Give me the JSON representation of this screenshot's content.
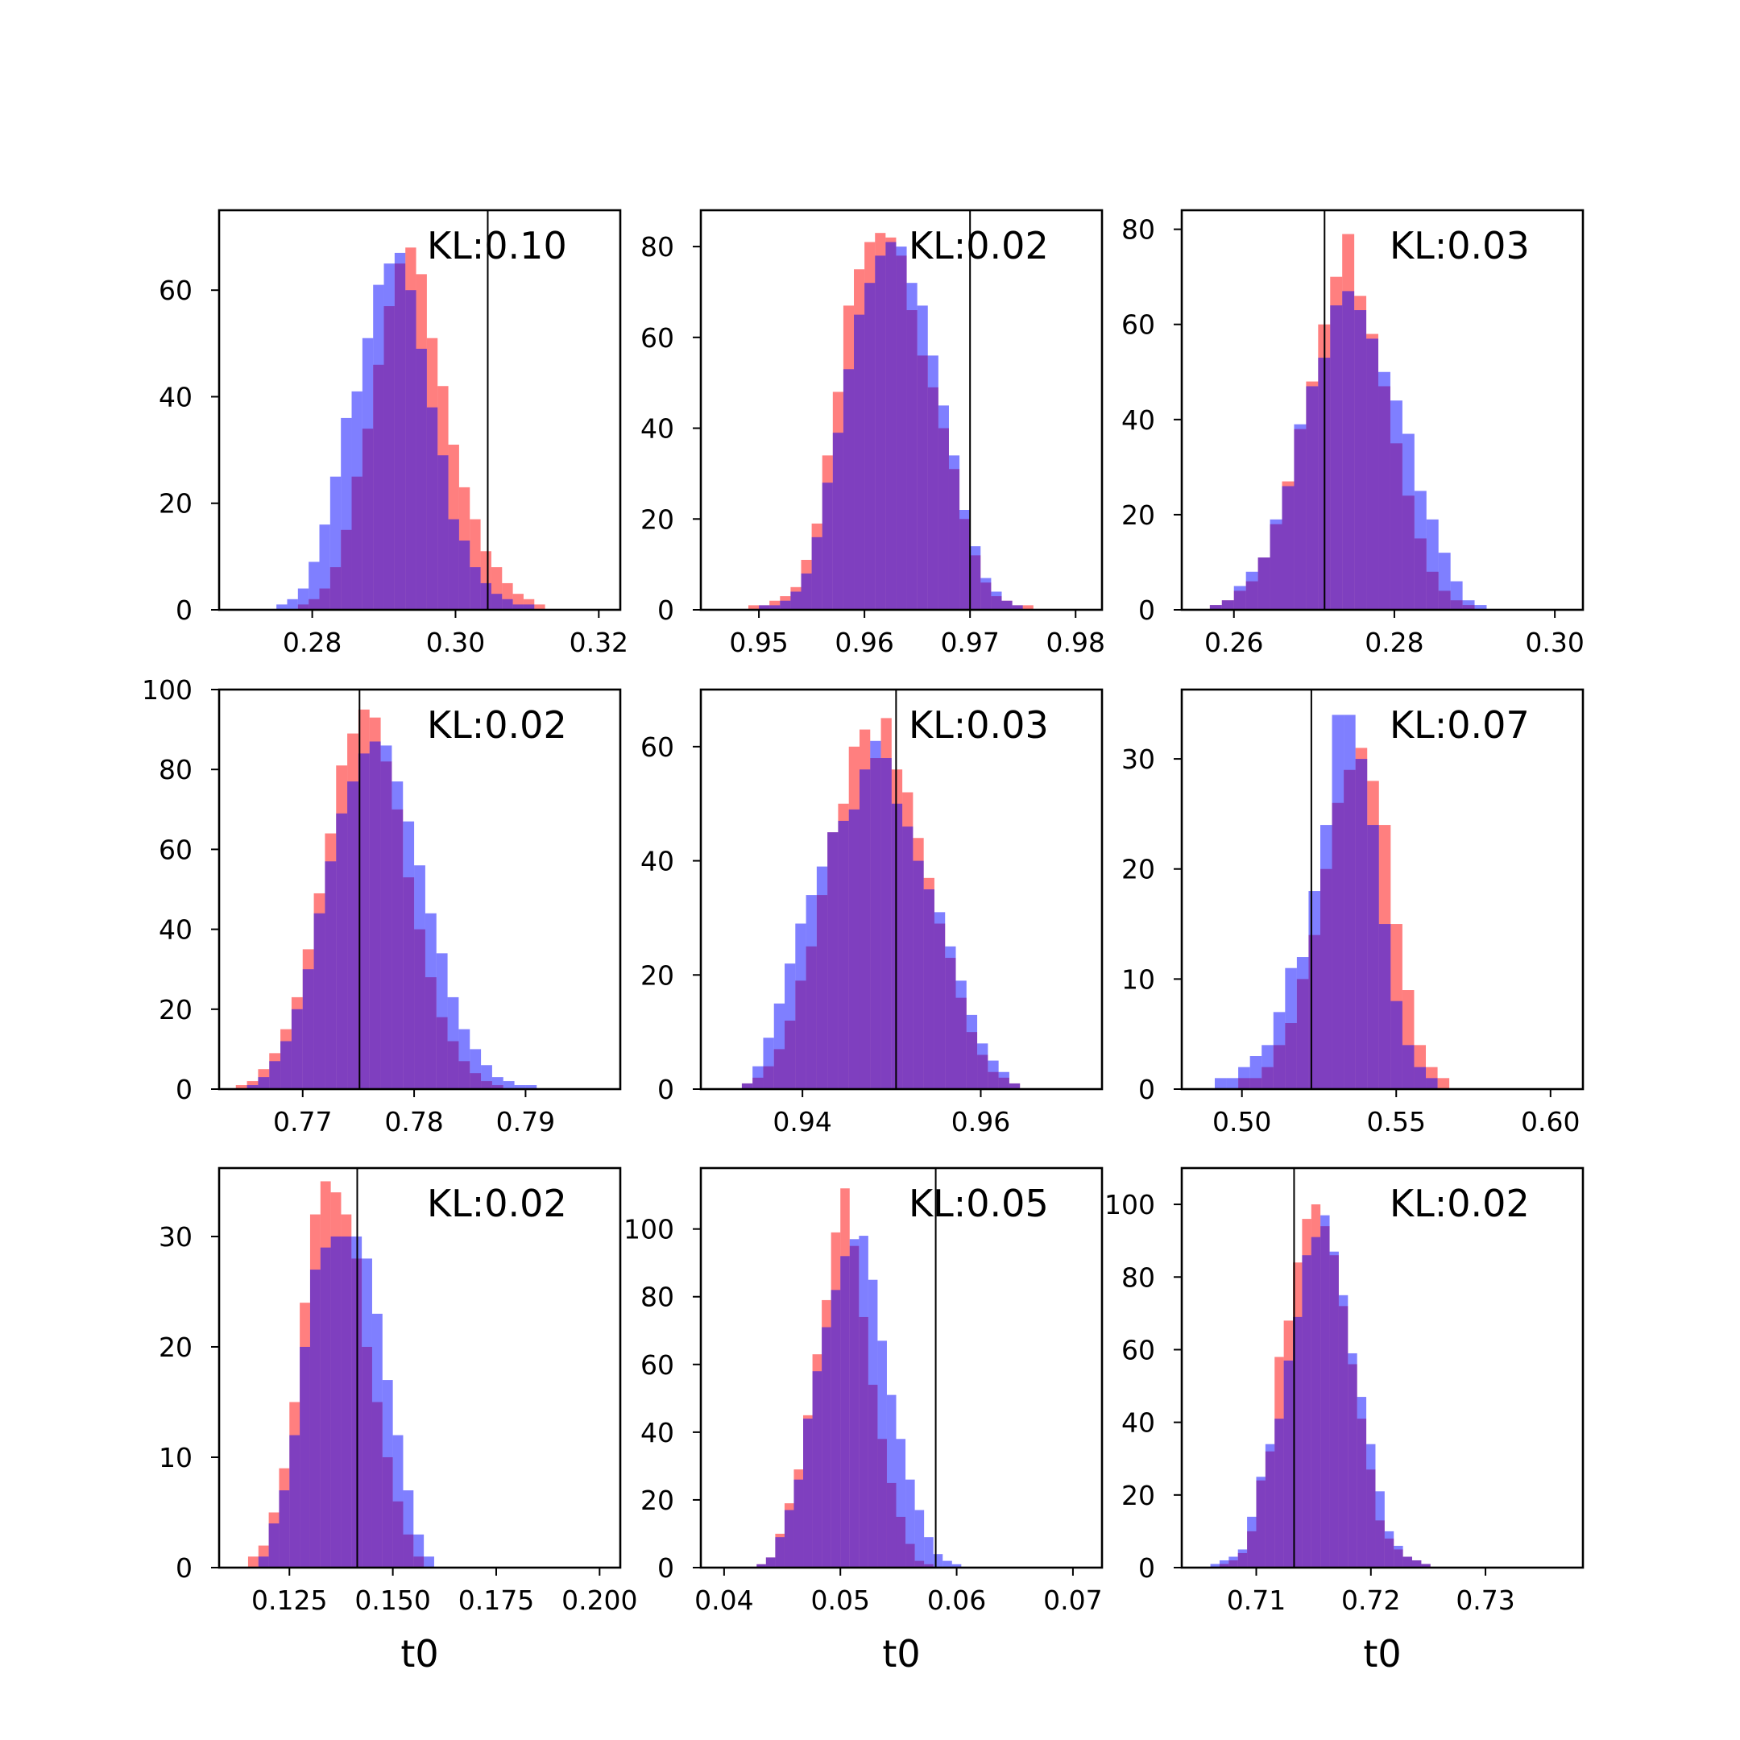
{
  "colors": {
    "red_series": "#ff0000",
    "blue_series": "#0000ff",
    "overlap": "#7f00ff",
    "reference_line": "#000000",
    "frame": "#000000"
  },
  "chart_data": [
    {
      "type": "histogram",
      "kl_label": "KL:0.10",
      "xlabel": "",
      "xlim": [
        0.267,
        0.323
      ],
      "ylim": [
        0,
        75
      ],
      "xticks": [
        0.28,
        0.3,
        0.32
      ],
      "xtick_labels": [
        "0.28",
        "0.30",
        "0.32"
      ],
      "yticks": [
        0,
        20,
        40,
        60
      ],
      "ytick_labels": [
        "0",
        "20",
        "40",
        "60"
      ],
      "reference_x": 0.3045,
      "bin_start": 0.2735,
      "bin_width": 0.0015,
      "series": [
        {
          "color": "red",
          "counts": [
            0,
            0,
            0,
            1,
            2,
            4,
            8,
            15,
            25,
            34,
            46,
            57,
            65,
            68,
            63,
            51,
            42,
            31,
            23,
            17,
            11,
            8,
            5,
            3,
            2,
            1,
            0
          ]
        },
        {
          "color": "blue",
          "counts": [
            0,
            1,
            2,
            4,
            9,
            16,
            25,
            36,
            41,
            51,
            61,
            65,
            67,
            60,
            49,
            38,
            29,
            17,
            13,
            8,
            5,
            3,
            2,
            1,
            1,
            0,
            0
          ]
        }
      ]
    },
    {
      "type": "histogram",
      "kl_label": "KL:0.02",
      "xlabel": "",
      "xlim": [
        0.9445,
        0.9825
      ],
      "ylim": [
        0,
        88
      ],
      "xticks": [
        0.95,
        0.96,
        0.97,
        0.98
      ],
      "xtick_labels": [
        "0.95",
        "0.96",
        "0.97",
        "0.98"
      ],
      "yticks": [
        0,
        20,
        40,
        60,
        80
      ],
      "ytick_labels": [
        "0",
        "20",
        "40",
        "60",
        "80"
      ],
      "reference_x": 0.97,
      "bin_start": 0.948,
      "bin_width": 0.001,
      "series": [
        {
          "color": "red",
          "counts": [
            0,
            1,
            1,
            2,
            3,
            5,
            11,
            19,
            34,
            48,
            67,
            75,
            81,
            83,
            82,
            78,
            66,
            56,
            49,
            40,
            31,
            20,
            12,
            6,
            3,
            2,
            1,
            1
          ]
        },
        {
          "color": "blue",
          "counts": [
            0,
            0,
            1,
            1,
            2,
            4,
            8,
            16,
            28,
            39,
            53,
            65,
            72,
            78,
            81,
            80,
            72,
            67,
            56,
            45,
            34,
            22,
            14,
            7,
            4,
            2,
            1,
            0
          ]
        }
      ]
    },
    {
      "type": "histogram",
      "kl_label": "KL:0.03",
      "xlabel": "",
      "xlim": [
        0.2535,
        0.3035
      ],
      "ylim": [
        0,
        84
      ],
      "xticks": [
        0.26,
        0.28,
        0.3
      ],
      "xtick_labels": [
        "0.26",
        "0.28",
        "0.30"
      ],
      "yticks": [
        0,
        20,
        40,
        60,
        80
      ],
      "ytick_labels": [
        "0",
        "20",
        "40",
        "60",
        "80"
      ],
      "reference_x": 0.2713,
      "bin_start": 0.2555,
      "bin_width": 0.0015,
      "series": [
        {
          "color": "red",
          "counts": [
            0,
            1,
            2,
            4,
            6,
            11,
            18,
            27,
            38,
            48,
            60,
            70,
            79,
            66,
            58,
            47,
            35,
            24,
            15,
            8,
            4,
            2,
            1,
            0,
            0
          ]
        },
        {
          "color": "blue",
          "counts": [
            0,
            1,
            2,
            5,
            8,
            11,
            19,
            26,
            39,
            47,
            53,
            64,
            67,
            63,
            57,
            50,
            44,
            37,
            25,
            19,
            12,
            6,
            2,
            1,
            0
          ]
        }
      ]
    },
    {
      "type": "histogram",
      "kl_label": "KL:0.02",
      "xlabel": "",
      "xlim": [
        0.7625,
        0.7985
      ],
      "ylim": [
        0,
        100
      ],
      "xticks": [
        0.77,
        0.78,
        0.79
      ],
      "xtick_labels": [
        "0.77",
        "0.78",
        "0.79"
      ],
      "yticks": [
        0,
        20,
        40,
        60,
        80,
        100
      ],
      "ytick_labels": [
        "0",
        "20",
        "40",
        "60",
        "80",
        "100"
      ],
      "reference_x": 0.7751,
      "bin_start": 0.764,
      "bin_width": 0.001,
      "series": [
        {
          "color": "red",
          "counts": [
            1,
            2,
            5,
            9,
            15,
            23,
            35,
            49,
            64,
            81,
            89,
            95,
            93,
            82,
            70,
            53,
            40,
            28,
            18,
            12,
            7,
            4,
            2,
            1,
            0,
            0,
            0,
            0,
            0,
            0
          ]
        },
        {
          "color": "blue",
          "counts": [
            0,
            1,
            3,
            7,
            12,
            20,
            30,
            44,
            57,
            69,
            77,
            84,
            87,
            86,
            77,
            67,
            56,
            44,
            34,
            23,
            15,
            10,
            6,
            3,
            2,
            1,
            1,
            0,
            0,
            0
          ]
        }
      ]
    },
    {
      "type": "histogram",
      "kl_label": "KL:0.03",
      "xlabel": "",
      "xlim": [
        0.9286,
        0.9736
      ],
      "ylim": [
        0,
        70
      ],
      "xticks": [
        0.94,
        0.96
      ],
      "xtick_labels": [
        "0.94",
        "0.96"
      ],
      "yticks": [
        0,
        20,
        40,
        60
      ],
      "ytick_labels": [
        "0",
        "20",
        "40",
        "60"
      ],
      "reference_x": 0.9505,
      "bin_start": 0.932,
      "bin_width": 0.0012,
      "series": [
        {
          "color": "red",
          "counts": [
            0,
            1,
            2,
            4,
            7,
            12,
            19,
            25,
            34,
            45,
            50,
            60,
            63,
            58,
            65,
            56,
            52,
            44,
            37,
            29,
            23,
            16,
            10,
            6,
            3,
            2,
            1,
            0,
            0,
            0,
            0,
            0,
            0
          ]
        },
        {
          "color": "blue",
          "counts": [
            0,
            1,
            4,
            9,
            15,
            22,
            29,
            34,
            39,
            45,
            47,
            49,
            56,
            61,
            58,
            50,
            46,
            40,
            35,
            31,
            25,
            19,
            13,
            8,
            5,
            3,
            1,
            0,
            0,
            0,
            0,
            0,
            0
          ]
        }
      ]
    },
    {
      "type": "histogram",
      "kl_label": "KL:0.07",
      "xlabel": "",
      "xlim": [
        0.4805,
        0.6105
      ],
      "ylim": [
        0,
        36.3
      ],
      "xticks": [
        0.5,
        0.55,
        0.6
      ],
      "xtick_labels": [
        "0.50",
        "0.55",
        "0.60"
      ],
      "yticks": [
        0,
        10,
        20,
        30
      ],
      "ytick_labels": [
        "0",
        "10",
        "20",
        "30"
      ],
      "reference_x": 0.5225,
      "bin_start": 0.4912,
      "bin_width": 0.0038,
      "series": [
        {
          "color": "red",
          "counts": [
            0,
            0,
            1,
            1,
            2,
            4,
            6,
            10,
            14,
            20,
            26,
            29,
            31,
            28,
            24,
            15,
            9,
            4,
            2,
            1,
            0,
            0,
            0,
            0,
            0,
            0,
            0,
            0,
            0,
            0,
            0,
            0
          ]
        },
        {
          "color": "blue",
          "counts": [
            1,
            1,
            2,
            3,
            4,
            7,
            11,
            12,
            18,
            24,
            34,
            34,
            30,
            24,
            15,
            8,
            4,
            2,
            1,
            0,
            0,
            0,
            0,
            0,
            0,
            0,
            0,
            0,
            0,
            0,
            0,
            0
          ]
        }
      ]
    },
    {
      "type": "histogram",
      "kl_label": "KL:0.02",
      "xlabel": "t0",
      "xlim": [
        0.108,
        0.205
      ],
      "ylim": [
        0,
        36.2
      ],
      "xticks": [
        0.125,
        0.15,
        0.175,
        0.2
      ],
      "xtick_labels": [
        "0.125",
        "0.150",
        "0.175",
        "0.200"
      ],
      "yticks": [
        0,
        10,
        20,
        30
      ],
      "ytick_labels": [
        "0",
        "10",
        "20",
        "30"
      ],
      "reference_x": 0.1414,
      "bin_start": 0.1125,
      "bin_width": 0.0025,
      "series": [
        {
          "color": "red",
          "counts": [
            0,
            1,
            2,
            5,
            9,
            15,
            24,
            32,
            35,
            34,
            32,
            28,
            20,
            15,
            10,
            6,
            3,
            1,
            0,
            0,
            0,
            0,
            0,
            0,
            0,
            0,
            0,
            0,
            0,
            0,
            0,
            0,
            0,
            0,
            0,
            0,
            0,
            0
          ]
        },
        {
          "color": "blue",
          "counts": [
            0,
            0,
            1,
            4,
            7,
            12,
            20,
            27,
            29,
            30,
            30,
            30,
            28,
            23,
            17,
            12,
            7,
            3,
            1,
            0,
            0,
            0,
            0,
            0,
            0,
            0,
            0,
            0,
            0,
            0,
            0,
            0,
            0,
            0,
            0,
            0,
            0,
            0
          ]
        }
      ]
    },
    {
      "type": "histogram",
      "kl_label": "KL:0.05",
      "xlabel": "t0",
      "xlim": [
        0.038,
        0.0725
      ],
      "ylim": [
        0,
        118
      ],
      "xticks": [
        0.04,
        0.05,
        0.06,
        0.07
      ],
      "xtick_labels": [
        "0.04",
        "0.05",
        "0.06",
        "0.07"
      ],
      "yticks": [
        0,
        20,
        40,
        60,
        80,
        100
      ],
      "ytick_labels": [
        "0",
        "20",
        "40",
        "60",
        "80",
        "100"
      ],
      "reference_x": 0.0582,
      "bin_start": 0.042,
      "bin_width": 0.0008,
      "series": [
        {
          "color": "red",
          "counts": [
            0,
            1,
            3,
            10,
            19,
            29,
            45,
            63,
            79,
            99,
            112,
            95,
            74,
            54,
            38,
            25,
            15,
            7,
            2,
            1,
            0,
            0,
            0,
            0,
            0,
            0,
            0,
            0,
            0,
            0,
            0
          ]
        },
        {
          "color": "blue",
          "counts": [
            0,
            1,
            3,
            9,
            17,
            26,
            44,
            58,
            71,
            82,
            92,
            97,
            98,
            85,
            67,
            51,
            38,
            26,
            17,
            9,
            4,
            2,
            1,
            0,
            0,
            0,
            0,
            0,
            0,
            0,
            0
          ]
        }
      ]
    },
    {
      "type": "histogram",
      "kl_label": "KL:0.02",
      "xlabel": "t0",
      "xlim": [
        0.7035,
        0.7385
      ],
      "ylim": [
        0,
        110
      ],
      "xticks": [
        0.71,
        0.72,
        0.73
      ],
      "xtick_labels": [
        "0.71",
        "0.72",
        "0.73"
      ],
      "yticks": [
        0,
        20,
        40,
        60,
        80,
        100
      ],
      "ytick_labels": [
        "0",
        "20",
        "40",
        "60",
        "80",
        "100"
      ],
      "reference_x": 0.7133,
      "bin_start": 0.706,
      "bin_width": 0.0008,
      "series": [
        {
          "color": "red",
          "counts": [
            0,
            1,
            2,
            4,
            10,
            24,
            32,
            58,
            68,
            84,
            96,
            100,
            94,
            86,
            72,
            56,
            41,
            27,
            13,
            8,
            5,
            3,
            2,
            1,
            0,
            0,
            0,
            0,
            0,
            0,
            0,
            0,
            0
          ]
        },
        {
          "color": "blue",
          "counts": [
            1,
            2,
            3,
            5,
            14,
            25,
            34,
            41,
            57,
            69,
            86,
            91,
            97,
            87,
            75,
            59,
            47,
            34,
            21,
            10,
            6,
            3,
            2,
            1,
            0,
            0,
            0,
            0,
            0,
            0,
            0,
            0,
            0
          ]
        }
      ]
    }
  ]
}
